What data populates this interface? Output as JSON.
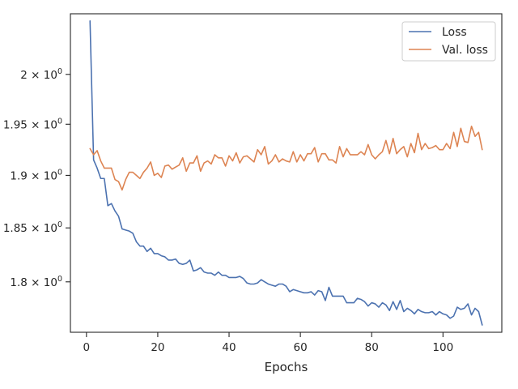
{
  "chart_data": {
    "type": "line",
    "xlabel": "Epochs",
    "ylabel": "",
    "xlim": [
      -4.5,
      116.5
    ],
    "ylim": [
      1.7545,
      2.0625
    ],
    "y_scale": "log",
    "grid": false,
    "legend_position": "top-right",
    "x_ticks": [
      {
        "value": 0,
        "label": "0"
      },
      {
        "value": 20,
        "label": "20"
      },
      {
        "value": 40,
        "label": "40"
      },
      {
        "value": 60,
        "label": "60"
      },
      {
        "value": 80,
        "label": "80"
      },
      {
        "value": 100,
        "label": "100"
      }
    ],
    "y_ticks": [
      {
        "value": 1.8,
        "mantissa": "1.8",
        "base": "10",
        "exp": "0"
      },
      {
        "value": 1.85,
        "mantissa": "1.85",
        "base": "10",
        "exp": "0"
      },
      {
        "value": 1.9,
        "mantissa": "1.9",
        "base": "10",
        "exp": "0"
      },
      {
        "value": 1.95,
        "mantissa": "1.95",
        "base": "10",
        "exp": "0"
      },
      {
        "value": 2.0,
        "mantissa": "2",
        "base": "10",
        "exp": "0"
      }
    ],
    "series": [
      {
        "name": "Loss",
        "color": "#4c72b0",
        "x": [
          1,
          2,
          3,
          4,
          5,
          6,
          7,
          8,
          9,
          10,
          11,
          12,
          13,
          14,
          15,
          16,
          17,
          18,
          19,
          20,
          21,
          22,
          23,
          24,
          25,
          26,
          27,
          28,
          29,
          30,
          31,
          32,
          33,
          34,
          35,
          36,
          37,
          38,
          39,
          40,
          41,
          42,
          43,
          44,
          45,
          46,
          47,
          48,
          49,
          50,
          51,
          52,
          53,
          54,
          55,
          56,
          57,
          58,
          59,
          60,
          61,
          62,
          63,
          64,
          65,
          66,
          67,
          68,
          69,
          70,
          71,
          72,
          73,
          74,
          75,
          76,
          77,
          78,
          79,
          80,
          81,
          82,
          83,
          84,
          85,
          86,
          87,
          88,
          89,
          90,
          91,
          92,
          93,
          94,
          95,
          96,
          97,
          98,
          99,
          100,
          101,
          102,
          103,
          104,
          105,
          106,
          107,
          108,
          109,
          110,
          111
        ],
        "values": [
          2.055,
          1.915,
          1.907,
          1.897,
          1.897,
          1.871,
          1.873,
          1.866,
          1.861,
          1.849,
          1.848,
          1.847,
          1.845,
          1.837,
          1.833,
          1.833,
          1.828,
          1.831,
          1.826,
          1.826,
          1.824,
          1.823,
          1.82,
          1.82,
          1.821,
          1.817,
          1.816,
          1.817,
          1.82,
          1.81,
          1.811,
          1.813,
          1.809,
          1.808,
          1.808,
          1.806,
          1.809,
          1.806,
          1.806,
          1.804,
          1.804,
          1.804,
          1.805,
          1.803,
          1.799,
          1.798,
          1.798,
          1.799,
          1.802,
          1.8,
          1.798,
          1.797,
          1.796,
          1.798,
          1.798,
          1.796,
          1.791,
          1.793,
          1.792,
          1.791,
          1.79,
          1.79,
          1.791,
          1.788,
          1.792,
          1.791,
          1.783,
          1.795,
          1.787,
          1.787,
          1.787,
          1.787,
          1.781,
          1.781,
          1.781,
          1.785,
          1.784,
          1.782,
          1.778,
          1.781,
          1.78,
          1.777,
          1.781,
          1.779,
          1.774,
          1.782,
          1.775,
          1.783,
          1.773,
          1.776,
          1.774,
          1.771,
          1.775,
          1.773,
          1.772,
          1.772,
          1.773,
          1.77,
          1.773,
          1.771,
          1.77,
          1.767,
          1.769,
          1.777,
          1.775,
          1.776,
          1.78,
          1.77,
          1.776,
          1.773,
          1.761
        ]
      },
      {
        "name": "Val. loss",
        "color": "#dd8452",
        "x": [
          1,
          2,
          3,
          4,
          5,
          6,
          7,
          8,
          9,
          10,
          11,
          12,
          13,
          14,
          15,
          16,
          17,
          18,
          19,
          20,
          21,
          22,
          23,
          24,
          25,
          26,
          27,
          28,
          29,
          30,
          31,
          32,
          33,
          34,
          35,
          36,
          37,
          38,
          39,
          40,
          41,
          42,
          43,
          44,
          45,
          46,
          47,
          48,
          49,
          50,
          51,
          52,
          53,
          54,
          55,
          56,
          57,
          58,
          59,
          60,
          61,
          62,
          63,
          64,
          65,
          66,
          67,
          68,
          69,
          70,
          71,
          72,
          73,
          74,
          75,
          76,
          77,
          78,
          79,
          80,
          81,
          82,
          83,
          84,
          85,
          86,
          87,
          88,
          89,
          90,
          91,
          92,
          93,
          94,
          95,
          96,
          97,
          98,
          99,
          100,
          101,
          102,
          103,
          104,
          105,
          106,
          107,
          108,
          109,
          110,
          111
        ],
        "values": [
          1.926,
          1.92,
          1.924,
          1.914,
          1.907,
          1.907,
          1.907,
          1.896,
          1.894,
          1.886,
          1.896,
          1.903,
          1.903,
          1.9,
          1.897,
          1.903,
          1.907,
          1.913,
          1.9,
          1.902,
          1.898,
          1.909,
          1.91,
          1.906,
          1.908,
          1.91,
          1.917,
          1.904,
          1.912,
          1.912,
          1.919,
          1.904,
          1.912,
          1.914,
          1.911,
          1.92,
          1.917,
          1.917,
          1.909,
          1.919,
          1.914,
          1.922,
          1.912,
          1.918,
          1.919,
          1.916,
          1.913,
          1.925,
          1.92,
          1.928,
          1.911,
          1.914,
          1.92,
          1.913,
          1.916,
          1.914,
          1.913,
          1.923,
          1.913,
          1.92,
          1.914,
          1.921,
          1.921,
          1.927,
          1.913,
          1.921,
          1.921,
          1.915,
          1.915,
          1.912,
          1.928,
          1.918,
          1.926,
          1.92,
          1.92,
          1.92,
          1.923,
          1.92,
          1.93,
          1.92,
          1.916,
          1.92,
          1.923,
          1.934,
          1.921,
          1.936,
          1.921,
          1.925,
          1.928,
          1.918,
          1.931,
          1.922,
          1.941,
          1.925,
          1.931,
          1.926,
          1.927,
          1.929,
          1.925,
          1.925,
          1.931,
          1.926,
          1.942,
          1.928,
          1.946,
          1.933,
          1.932,
          1.948,
          1.938,
          1.942,
          1.925
        ]
      }
    ]
  }
}
